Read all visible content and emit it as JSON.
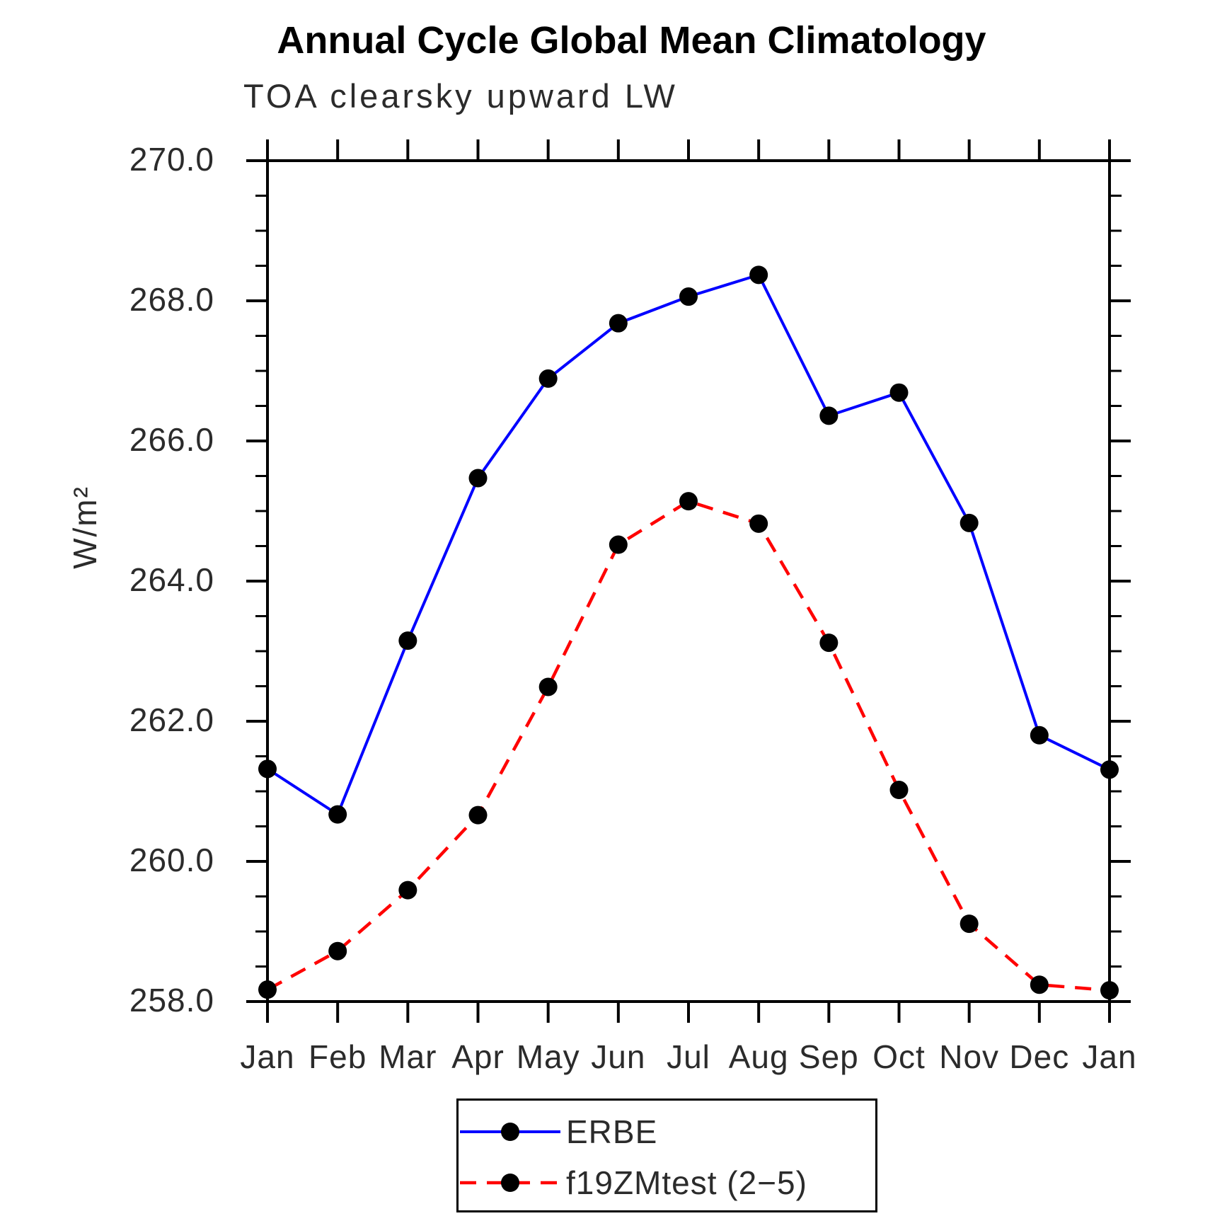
{
  "chart_data": {
    "type": "line",
    "title": "Annual Cycle Global Mean Climatology",
    "subtitle": "TOA clearsky upward LW",
    "ylabel": "W/m²",
    "categories": [
      "Jan",
      "Feb",
      "Mar",
      "Apr",
      "May",
      "Jun",
      "Jul",
      "Aug",
      "Sep",
      "Oct",
      "Nov",
      "Dec",
      "Jan"
    ],
    "ylim": [
      258.0,
      270.0
    ],
    "ytick_major_step": 2.0,
    "ytick_minor_step": 0.5,
    "ytick_labels": [
      "258.0",
      "260.0",
      "262.0",
      "264.0",
      "266.0",
      "268.0",
      "270.0"
    ],
    "grid": false,
    "legend_position": "bottom-center",
    "axis_color": "#000000",
    "marker_color": "#000000",
    "series": [
      {
        "name": "ERBE",
        "color": "#0000ff",
        "style": "solid",
        "marker": "circle",
        "values": [
          261.32,
          260.67,
          263.15,
          265.47,
          266.89,
          267.68,
          268.06,
          268.37,
          266.36,
          266.69,
          264.83,
          261.8,
          261.31
        ]
      },
      {
        "name": "f19ZMtest (2−5)",
        "color": "#ff0000",
        "style": "dashed",
        "marker": "circle",
        "values": [
          258.17,
          258.72,
          259.59,
          260.66,
          262.49,
          264.52,
          265.14,
          264.82,
          263.12,
          261.02,
          259.11,
          258.24,
          258.16
        ]
      }
    ]
  }
}
